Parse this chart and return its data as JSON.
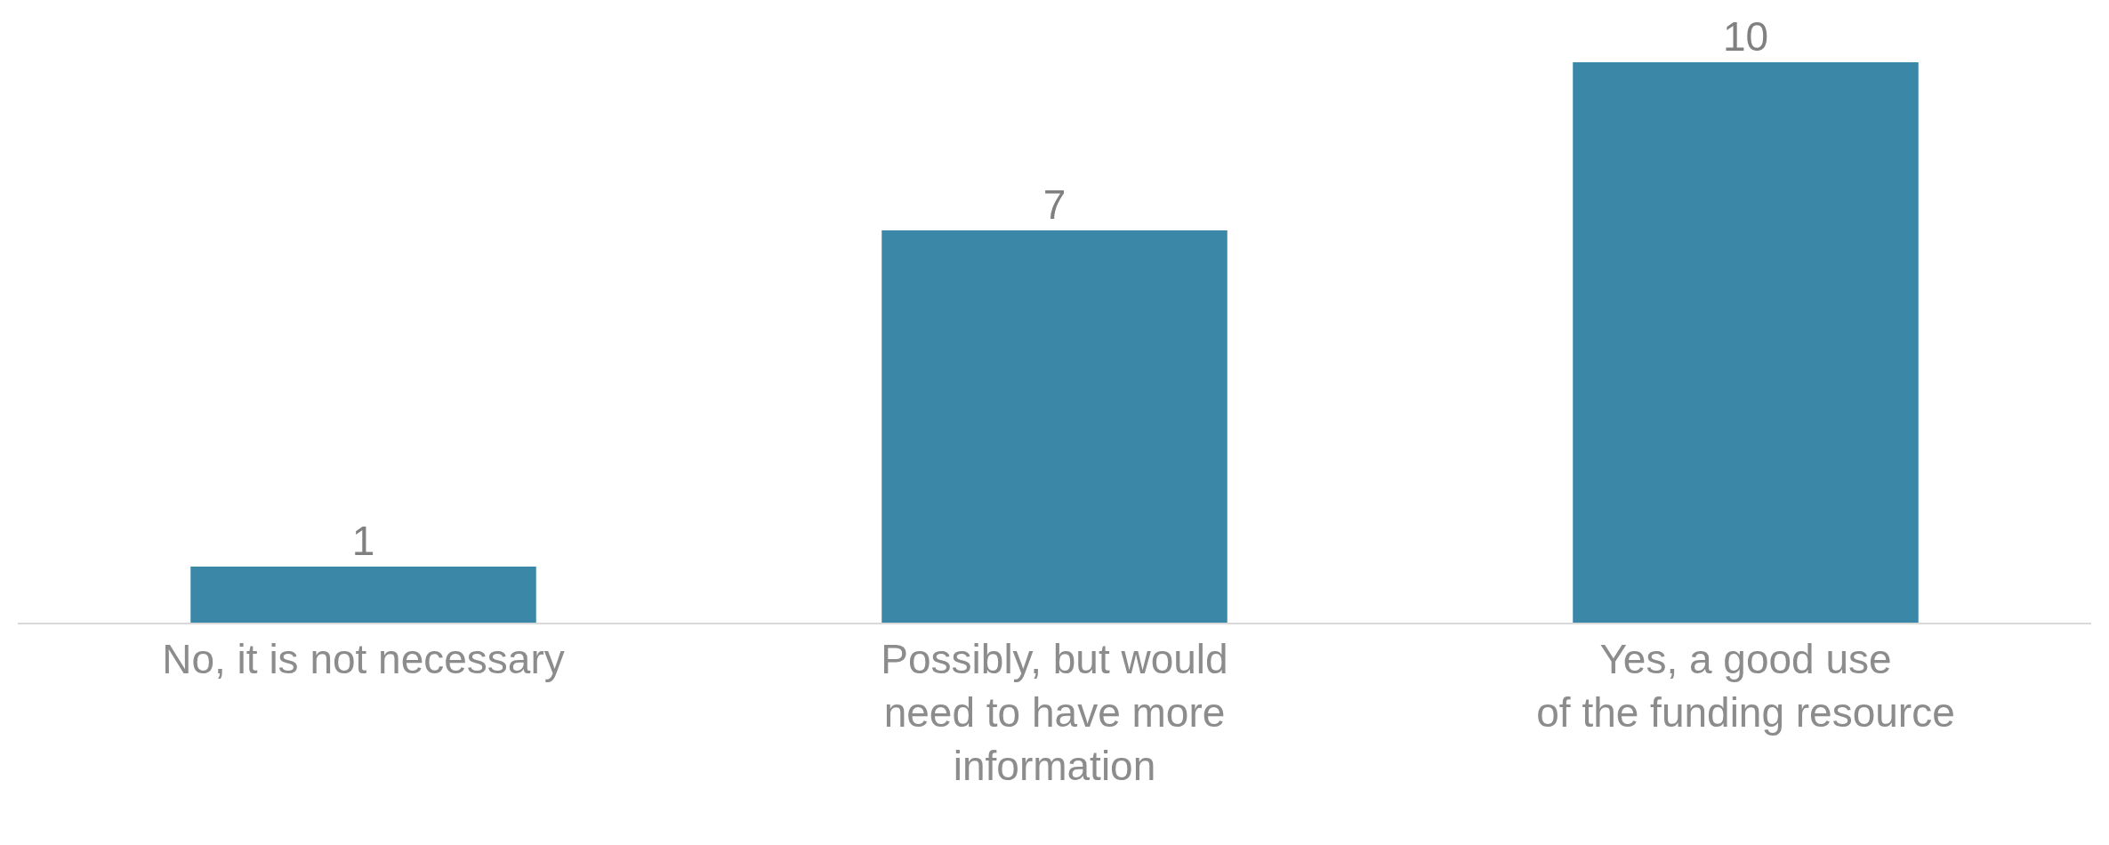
{
  "chart_data": {
    "type": "bar",
    "categories": [
      "No, it is not necessary",
      "Possibly, but would\nneed to have more\ninformation",
      "Yes, a good use\nof the funding resource"
    ],
    "values": [
      1,
      7,
      10
    ],
    "color": "#3b87a8",
    "data_labels": true
  }
}
